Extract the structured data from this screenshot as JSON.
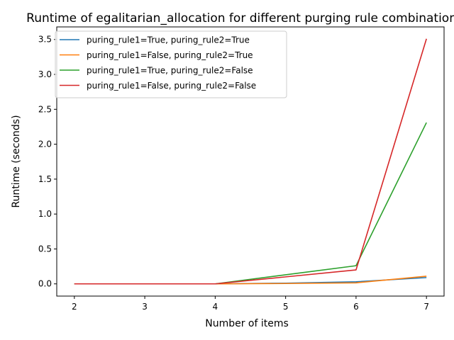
{
  "chart_data": {
    "type": "line",
    "title": "Runtime of egalitarian_allocation for different purging rule combinations",
    "xlabel": "Number of items",
    "ylabel": "Runtime (seconds)",
    "x": [
      2,
      3,
      4,
      5,
      6,
      7
    ],
    "xticks": [
      2,
      3,
      4,
      5,
      6,
      7
    ],
    "yticks": [
      0.0,
      0.5,
      1.0,
      1.5,
      2.0,
      2.5,
      3.0,
      3.5
    ],
    "ytick_labels": [
      "0.0",
      "0.5",
      "1.0",
      "1.5",
      "2.0",
      "2.5",
      "3.0",
      "3.5"
    ],
    "xlim": [
      1.75,
      7.25
    ],
    "ylim": [
      -0.175,
      3.68
    ],
    "grid": false,
    "legend_position": "top-left",
    "series": [
      {
        "name": "puring_rule1=True, puring_rule2=True",
        "color": "#1f77b4",
        "values": [
          0.0,
          0.0,
          0.0,
          0.01,
          0.03,
          0.09
        ]
      },
      {
        "name": "puring_rule1=False, puring_rule2=True",
        "color": "#ff7f0e",
        "values": [
          0.0,
          0.0,
          0.0,
          0.005,
          0.015,
          0.11
        ]
      },
      {
        "name": "puring_rule1=True, puring_rule2=False",
        "color": "#2ca02c",
        "values": [
          0.0,
          0.0,
          0.0,
          0.13,
          0.26,
          2.31
        ]
      },
      {
        "name": "puring_rule1=False, puring_rule2=False",
        "color": "#d62728",
        "values": [
          0.0,
          0.0,
          0.0,
          0.1,
          0.2,
          3.51
        ]
      }
    ]
  }
}
